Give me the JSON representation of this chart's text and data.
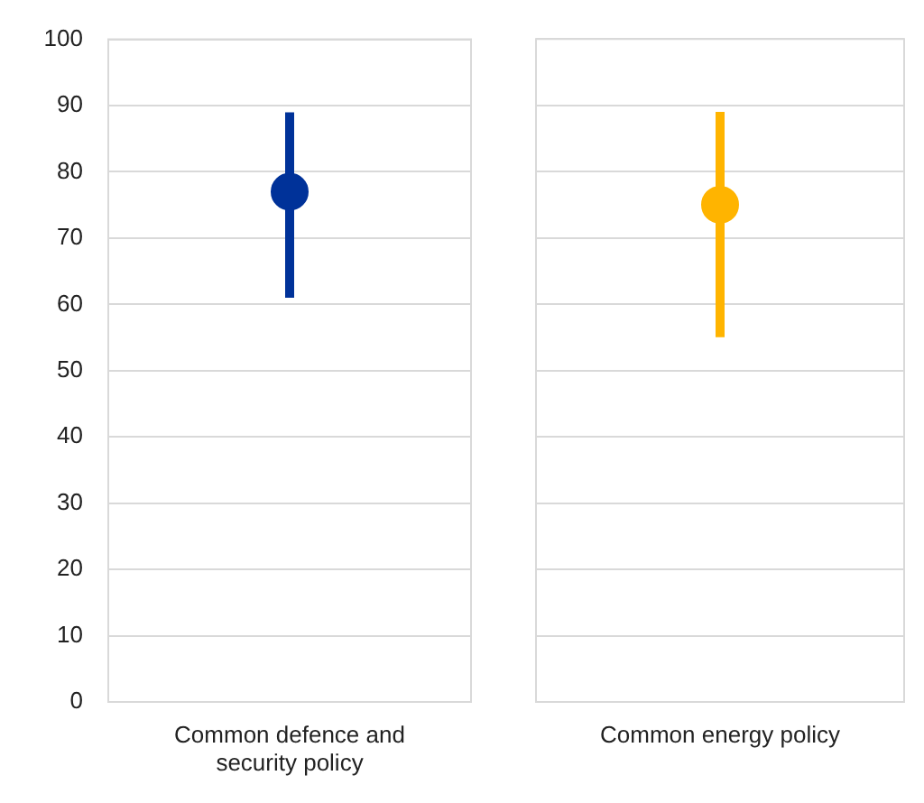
{
  "chart_data": [
    {
      "type": "scatter",
      "categories": [
        "Common defence and security policy"
      ],
      "values": [
        77
      ],
      "errors": [
        [
          61,
          89
        ]
      ],
      "color": "#003299",
      "ylim": [
        0,
        100
      ],
      "yticks": [
        0,
        10,
        20,
        30,
        40,
        50,
        60,
        70,
        80,
        90,
        100
      ],
      "grid": "y",
      "marker": "circle"
    },
    {
      "type": "scatter",
      "categories": [
        "Common energy policy"
      ],
      "values": [
        75
      ],
      "errors": [
        [
          55,
          89
        ]
      ],
      "color": "#ffb400",
      "ylim": [
        0,
        100
      ],
      "yticks": [
        0,
        10,
        20,
        30,
        40,
        50,
        60,
        70,
        80,
        90,
        100
      ],
      "grid": "y",
      "marker": "circle",
      "tick_labels": "x"
    }
  ]
}
